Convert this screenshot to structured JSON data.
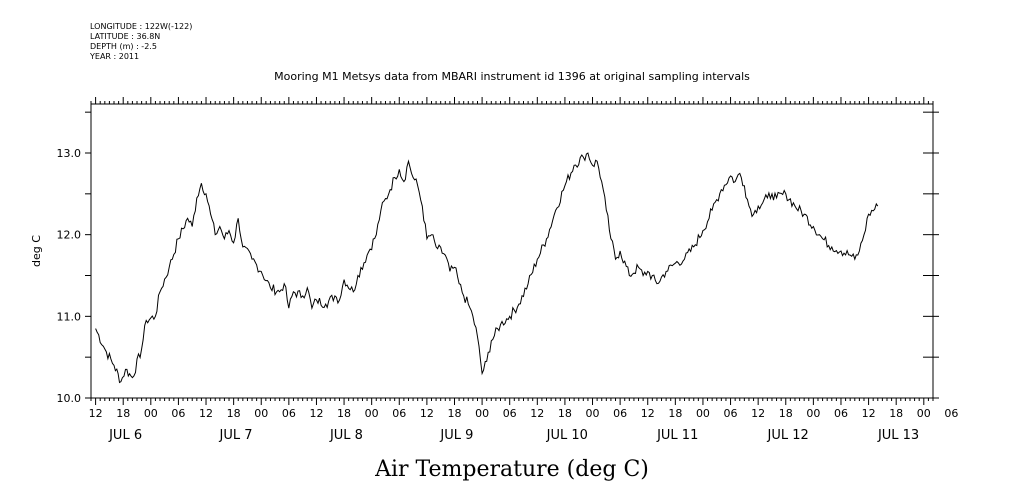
{
  "header": {
    "meta_lines": [
      "LONGITUDE : 122W(-122)",
      "LATITUDE : 36.8N",
      "DEPTH (m) : -2.5",
      "YEAR : 2011"
    ],
    "title": "Mooring M1 Metsys data from MBARI instrument id 1396 at original sampling intervals"
  },
  "chart_data": {
    "type": "line",
    "title": "Mooring M1 Metsys data from MBARI instrument id 1396 at original sampling intervals",
    "xlabel": "Air Temperature (deg C)",
    "ylabel": "deg C",
    "ylim": [
      10.0,
      13.6
    ],
    "yticks": [
      10.0,
      11.0,
      12.0,
      13.0
    ],
    "yticklabels": [
      "10.0",
      "11.0",
      "12.0",
      "13.0"
    ],
    "x_units": "hours since JUL 6 00:00 (2011)",
    "xlim": [
      -13,
      170
    ],
    "hour_tick_labels": [
      "12",
      "18",
      "00",
      "06",
      "12",
      "18",
      "00",
      "06",
      "12",
      "18",
      "00",
      "06",
      "12",
      "18",
      "00",
      "06",
      "12",
      "18",
      "00",
      "06",
      "12",
      "18",
      "00",
      "06",
      "12",
      "18",
      "00",
      "06",
      "12",
      "18",
      "00",
      "06"
    ],
    "day_labels": [
      "JUL  6",
      "JUL  7",
      "JUL  8",
      "JUL  9",
      "JUL 10",
      "JUL 11",
      "JUL 12",
      "JUL 13"
    ],
    "grid": false,
    "series": [
      {
        "points": [
          [
            -12,
            10.85
          ],
          [
            -10,
            10.6
          ],
          [
            -8,
            10.4
          ],
          [
            -6.5,
            10.2
          ],
          [
            -5.5,
            10.35
          ],
          [
            -4,
            10.25
          ],
          [
            -2,
            10.6
          ],
          [
            -1,
            10.95
          ],
          [
            1,
            11.0
          ],
          [
            2,
            11.3
          ],
          [
            4,
            11.6
          ],
          [
            6,
            11.95
          ],
          [
            8,
            12.2
          ],
          [
            9,
            12.1
          ],
          [
            10,
            12.45
          ],
          [
            11,
            12.63
          ],
          [
            12,
            12.5
          ],
          [
            13,
            12.25
          ],
          [
            14,
            12.0
          ],
          [
            15,
            12.1
          ],
          [
            16,
            11.95
          ],
          [
            17,
            12.05
          ],
          [
            18,
            11.9
          ],
          [
            19,
            12.2
          ],
          [
            20,
            11.85
          ],
          [
            22,
            11.7
          ],
          [
            24,
            11.55
          ],
          [
            26,
            11.35
          ],
          [
            28,
            11.3
          ],
          [
            29,
            11.4
          ],
          [
            30,
            11.1
          ],
          [
            31,
            11.3
          ],
          [
            33,
            11.25
          ],
          [
            34,
            11.35
          ],
          [
            35,
            11.1
          ],
          [
            36,
            11.2
          ],
          [
            38,
            11.15
          ],
          [
            40,
            11.25
          ],
          [
            41,
            11.2
          ],
          [
            42,
            11.45
          ],
          [
            44,
            11.3
          ],
          [
            45,
            11.5
          ],
          [
            47,
            11.75
          ],
          [
            49,
            12.0
          ],
          [
            50,
            12.3
          ],
          [
            52,
            12.55
          ],
          [
            53,
            12.7
          ],
          [
            54,
            12.8
          ],
          [
            55,
            12.65
          ],
          [
            56,
            12.9
          ],
          [
            57,
            12.7
          ],
          [
            58,
            12.6
          ],
          [
            59,
            12.35
          ],
          [
            60,
            11.95
          ],
          [
            61,
            12.0
          ],
          [
            62,
            11.85
          ],
          [
            64,
            11.75
          ],
          [
            65,
            11.55
          ],
          [
            66,
            11.6
          ],
          [
            67,
            11.4
          ],
          [
            68,
            11.25
          ],
          [
            69,
            11.15
          ],
          [
            70,
            11.0
          ],
          [
            71,
            10.75
          ],
          [
            72,
            10.3
          ],
          [
            73,
            10.45
          ],
          [
            74,
            10.7
          ],
          [
            76,
            10.9
          ],
          [
            78,
            11.0
          ],
          [
            80,
            11.15
          ],
          [
            82,
            11.4
          ],
          [
            84,
            11.7
          ],
          [
            86,
            11.95
          ],
          [
            88,
            12.3
          ],
          [
            90,
            12.6
          ],
          [
            92,
            12.85
          ],
          [
            94,
            12.95
          ],
          [
            95,
            13.0
          ],
          [
            96,
            12.85
          ],
          [
            97,
            12.9
          ],
          [
            98,
            12.65
          ],
          [
            99,
            12.3
          ],
          [
            100,
            11.95
          ],
          [
            101,
            11.7
          ],
          [
            102,
            11.8
          ],
          [
            104,
            11.5
          ],
          [
            106,
            11.6
          ],
          [
            107,
            11.5
          ],
          [
            108,
            11.55
          ],
          [
            110,
            11.4
          ],
          [
            112,
            11.55
          ],
          [
            114,
            11.65
          ],
          [
            116,
            11.7
          ],
          [
            118,
            11.85
          ],
          [
            120,
            12.05
          ],
          [
            122,
            12.3
          ],
          [
            124,
            12.55
          ],
          [
            126,
            12.72
          ],
          [
            127,
            12.65
          ],
          [
            128,
            12.75
          ],
          [
            129,
            12.6
          ],
          [
            130,
            12.35
          ],
          [
            131,
            12.25
          ],
          [
            132,
            12.35
          ],
          [
            134,
            12.45
          ],
          [
            135,
            12.5
          ],
          [
            136,
            12.45
          ],
          [
            138,
            12.5
          ],
          [
            140,
            12.35
          ],
          [
            142,
            12.25
          ],
          [
            144,
            12.1
          ],
          [
            146,
            11.95
          ],
          [
            148,
            11.85
          ],
          [
            150,
            11.8
          ],
          [
            152,
            11.75
          ],
          [
            153,
            11.7
          ],
          [
            154,
            11.8
          ],
          [
            155,
            12.0
          ],
          [
            156,
            12.25
          ],
          [
            158,
            12.35
          ]
        ]
      }
    ]
  }
}
